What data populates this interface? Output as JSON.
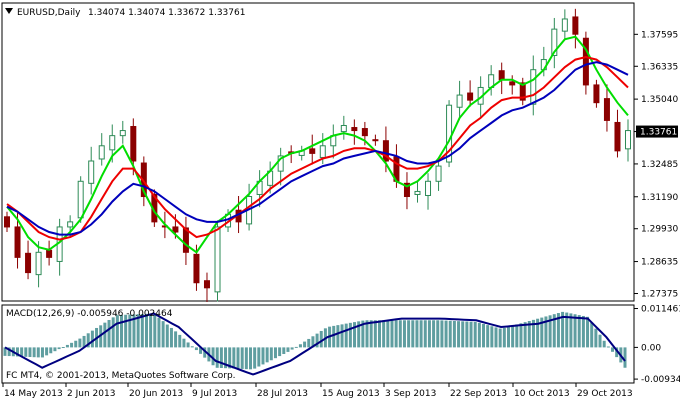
{
  "header": {
    "symbol_label": "EURUSD,Daily",
    "ohlc_label": "1.34074 1.34074 1.33672 1.33761"
  },
  "macd_panel": {
    "label": "MACD(12,26,9) -0.005946 -0.002464",
    "ticks": [
      "0.011461",
      "0.00",
      "-0.009349"
    ]
  },
  "copyright": "FC MT4, © 2001-2013, MetaQuotes Software Corp.",
  "colors": {
    "bull_candle": "#2e8b57",
    "bear_candle": "#8b0000",
    "ma_fast": "#00dd00",
    "ma_mid": "#ee0000",
    "ma_slow": "#0000bb",
    "macd_hist": "#5f9ea0",
    "macd_signal": "#000080"
  },
  "chart_data": [
    {
      "type": "candlestick",
      "y_ticks": [
        1.37595,
        1.36335,
        1.3504,
        1.33761,
        1.32485,
        1.3119,
        1.2993,
        1.28635,
        1.27375
      ],
      "y_tick_labels": [
        "1.37595",
        "1.36335",
        "1.35040",
        "1.33761",
        "1.32485",
        "1.31190",
        "1.29930",
        "1.28635",
        "1.27375"
      ],
      "ylim": [
        1.2708,
        1.3883
      ],
      "current_price": "1.33761",
      "x_tick_labels": [
        "14 May 2013",
        "2 Jun 2013",
        "20 Jun 2013",
        "9 Jul 2013",
        "28 Jul 2013",
        "15 Aug 2013",
        "3 Sep 2013",
        "22 Sep 2013",
        "10 Oct 2013",
        "29 Oct 2013"
      ],
      "close_path": [
        1.3,
        1.288,
        1.282,
        1.29,
        1.288,
        1.3,
        1.302,
        1.318,
        1.326,
        1.332,
        1.336,
        1.338,
        1.326,
        1.312,
        1.302,
        1.3,
        1.298,
        1.29,
        1.278,
        1.276,
        1.3,
        1.305,
        1.302,
        1.312,
        1.318,
        1.322,
        1.328,
        1.329,
        1.33,
        1.329,
        1.332,
        1.336,
        1.34,
        1.338,
        1.336,
        1.334,
        1.326,
        1.318,
        1.312,
        1.314,
        1.318,
        1.324,
        1.348,
        1.352,
        1.35,
        1.355,
        1.36,
        1.358,
        1.356,
        1.35,
        1.362,
        1.366,
        1.378,
        1.382,
        1.376,
        1.356,
        1.349,
        1.342,
        1.33,
        1.338
      ],
      "series": [
        {
          "name": "",
          "role": "ma_fast",
          "values": [
            1.308,
            1.303,
            1.296,
            1.292,
            1.291,
            1.294,
            1.298,
            1.303,
            1.311,
            1.32,
            1.328,
            1.332,
            1.324,
            1.314,
            1.306,
            1.301,
            1.297,
            1.293,
            1.29,
            1.296,
            1.302,
            1.305,
            1.309,
            1.313,
            1.318,
            1.322,
            1.327,
            1.329,
            1.33,
            1.332,
            1.334,
            1.336,
            1.337,
            1.336,
            1.334,
            1.33,
            1.325,
            1.318,
            1.316,
            1.318,
            1.322,
            1.327,
            1.334,
            1.343,
            1.348,
            1.351,
            1.355,
            1.358,
            1.358,
            1.356,
            1.358,
            1.362,
            1.369,
            1.374,
            1.375,
            1.37,
            1.362,
            1.355,
            1.349,
            1.344
          ]
        },
        {
          "name": "",
          "role": "ma_mid",
          "values": [
            1.309,
            1.306,
            1.302,
            1.298,
            1.296,
            1.295,
            1.296,
            1.298,
            1.304,
            1.311,
            1.318,
            1.323,
            1.323,
            1.318,
            1.312,
            1.307,
            1.303,
            1.299,
            1.296,
            1.297,
            1.299,
            1.302,
            1.305,
            1.308,
            1.311,
            1.315,
            1.318,
            1.321,
            1.323,
            1.325,
            1.327,
            1.328,
            1.33,
            1.331,
            1.331,
            1.33,
            1.328,
            1.325,
            1.323,
            1.323,
            1.324,
            1.326,
            1.33,
            1.335,
            1.34,
            1.343,
            1.347,
            1.35,
            1.351,
            1.351,
            1.352,
            1.355,
            1.359,
            1.363,
            1.366,
            1.367,
            1.366,
            1.363,
            1.359,
            1.355
          ]
        },
        {
          "name": "",
          "role": "ma_slow",
          "values": [
            1.308,
            1.306,
            1.303,
            1.3,
            1.298,
            1.297,
            1.297,
            1.298,
            1.301,
            1.305,
            1.31,
            1.314,
            1.317,
            1.316,
            1.314,
            1.311,
            1.308,
            1.305,
            1.303,
            1.302,
            1.302,
            1.303,
            1.305,
            1.307,
            1.309,
            1.312,
            1.315,
            1.318,
            1.32,
            1.322,
            1.324,
            1.325,
            1.327,
            1.328,
            1.329,
            1.33,
            1.329,
            1.328,
            1.326,
            1.325,
            1.325,
            1.326,
            1.328,
            1.331,
            1.335,
            1.338,
            1.341,
            1.344,
            1.346,
            1.347,
            1.349,
            1.351,
            1.354,
            1.358,
            1.362,
            1.364,
            1.365,
            1.364,
            1.362,
            1.36
          ]
        }
      ]
    },
    {
      "type": "bar",
      "label": "MACD(12,26,9)",
      "ylim": [
        -0.0105,
        0.0125
      ],
      "y_ticks": [
        0.011461,
        0.0,
        -0.009349
      ],
      "histogram_shape": [
        [
          0,
          -0.0025
        ],
        [
          6,
          -0.003
        ],
        [
          12,
          0.0025
        ],
        [
          18,
          0.0095
        ],
        [
          24,
          0.01
        ],
        [
          28,
          0.004
        ],
        [
          34,
          -0.006
        ],
        [
          40,
          -0.0065
        ],
        [
          46,
          -0.001
        ],
        [
          52,
          0.006
        ],
        [
          58,
          0.008
        ],
        [
          64,
          0.008
        ],
        [
          70,
          0.008
        ],
        [
          76,
          0.0075
        ],
        [
          80,
          0.0055
        ],
        [
          86,
          0.0085
        ],
        [
          90,
          0.0105
        ],
        [
          94,
          0.009
        ],
        [
          97,
          0.001
        ],
        [
          100,
          -0.006
        ]
      ],
      "signal_shape": [
        [
          0,
          0.0
        ],
        [
          6,
          -0.006
        ],
        [
          12,
          -0.001
        ],
        [
          18,
          0.007
        ],
        [
          24,
          0.01
        ],
        [
          28,
          0.006
        ],
        [
          34,
          -0.004
        ],
        [
          40,
          -0.008
        ],
        [
          46,
          -0.004
        ],
        [
          52,
          0.003
        ],
        [
          58,
          0.007
        ],
        [
          64,
          0.0085
        ],
        [
          70,
          0.0085
        ],
        [
          76,
          0.008
        ],
        [
          80,
          0.006
        ],
        [
          86,
          0.007
        ],
        [
          90,
          0.009
        ],
        [
          94,
          0.0085
        ],
        [
          97,
          0.003
        ],
        [
          100,
          -0.004
        ]
      ]
    }
  ]
}
